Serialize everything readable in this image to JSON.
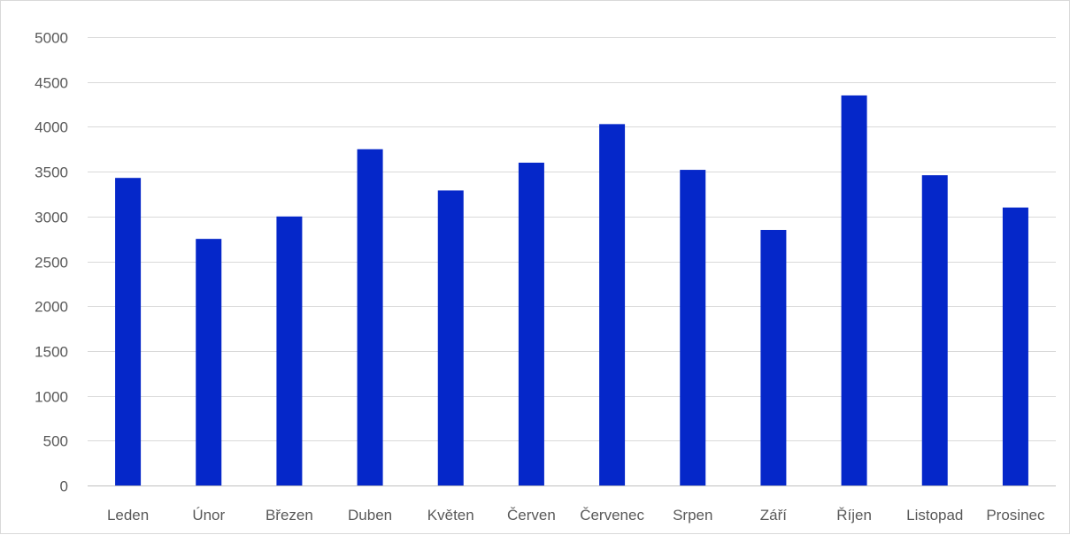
{
  "chart_data": {
    "type": "bar",
    "title": "",
    "xlabel": "",
    "ylabel": "",
    "categories": [
      "Leden",
      "Únor",
      "Březen",
      "Duben",
      "Květen",
      "Červen",
      "Červenec",
      "Srpen",
      "Září",
      "Říjen",
      "Listopad",
      "Prosinec"
    ],
    "values": [
      3430,
      2750,
      3000,
      3750,
      3290,
      3600,
      4030,
      3520,
      2850,
      4350,
      3460,
      3100
    ],
    "ylim": [
      0,
      5000
    ],
    "yticks": [
      0,
      500,
      1000,
      1500,
      2000,
      2500,
      3000,
      3500,
      4000,
      4500,
      5000
    ],
    "grid": true,
    "legend": "none",
    "colors": {
      "bar": "#0527c9",
      "grid": "#d9d9d9",
      "axis": "#bfbfbf",
      "text": "#595959"
    }
  }
}
